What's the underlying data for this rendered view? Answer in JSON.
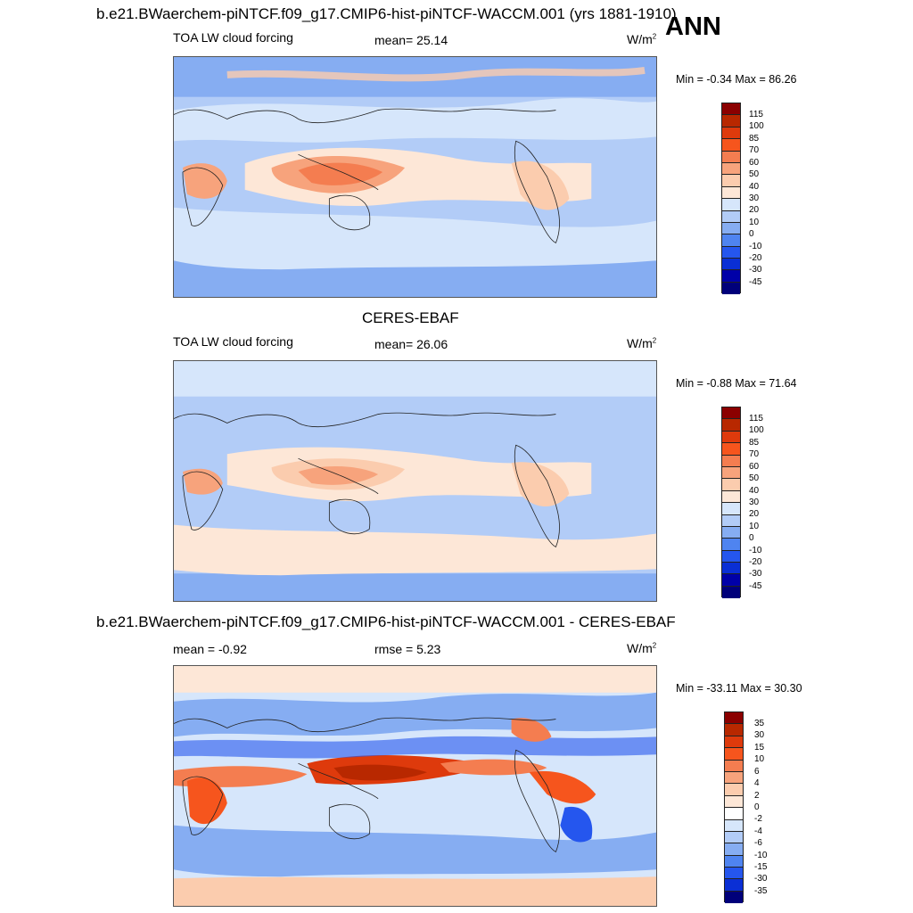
{
  "header": {
    "title": "b.e21.BWaerchem-piNTCF.f09_g17.CMIP6-hist-piNTCF-WACCM.001 (yrs 1881-1910)",
    "season": "ANN"
  },
  "panels": [
    {
      "variable": "TOA LW cloud forcing",
      "mean_label": "mean=  25.14",
      "units": "W/m",
      "units_sup": "2",
      "minmax": "Min =  -0.34 Max =  86.26",
      "ticks": [
        "115",
        "100",
        "85",
        "70",
        "60",
        "50",
        "40",
        "30",
        "20",
        "10",
        "0",
        "-10",
        "-20",
        "-30",
        "-45"
      ]
    },
    {
      "title": "CERES-EBAF",
      "variable": "TOA LW cloud forcing",
      "mean_label": "mean=  26.06",
      "units": "W/m",
      "units_sup": "2",
      "minmax": "Min =  -0.88 Max =  71.64",
      "ticks": [
        "115",
        "100",
        "85",
        "70",
        "60",
        "50",
        "40",
        "30",
        "20",
        "10",
        "0",
        "-10",
        "-20",
        "-30",
        "-45"
      ]
    },
    {
      "title": "b.e21.BWaerchem-piNTCF.f09_g17.CMIP6-hist-piNTCF-WACCM.001 - CERES-EBAF",
      "mean_label": "mean =  -0.92",
      "rmse_label": "rmse =   5.23",
      "units": "W/m",
      "units_sup": "2",
      "minmax": "Min = -33.11 Max =  30.30",
      "ticks": [
        "35",
        "30",
        "15",
        "10",
        "6",
        "4",
        "2",
        "0",
        "-2",
        "-4",
        "-6",
        "-10",
        "-15",
        "-30",
        "-35"
      ]
    }
  ],
  "colors": {
    "abs_scale": [
      "#8b0000",
      "#b82800",
      "#de3a0c",
      "#f6551d",
      "#f47d50",
      "#f7a37c",
      "#fbccae",
      "#fde7d7",
      "#d6e6fb",
      "#b2ccf7",
      "#86adf2",
      "#4f84f0",
      "#2556ee",
      "#0a2fd5",
      "#0000a8",
      "#00007a"
    ],
    "diff_scale": [
      "#8b0000",
      "#b82800",
      "#de3a0c",
      "#f6551d",
      "#f47d50",
      "#f7a37c",
      "#fbccae",
      "#fde7d7",
      "#ffffff",
      "#d6e6fb",
      "#b2ccf7",
      "#86adf2",
      "#4f84f0",
      "#2556ee",
      "#0a2fd5",
      "#00007a"
    ]
  }
}
